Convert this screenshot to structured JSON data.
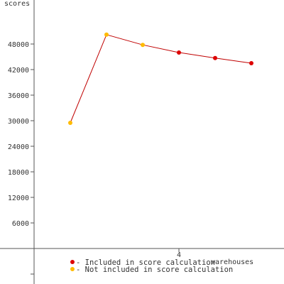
{
  "chart_data": {
    "type": "line",
    "ylabel": "scores",
    "xlabel": "warehouses",
    "x_ticks": [
      4
    ],
    "y_ticks": [
      6000,
      12000,
      18000,
      24000,
      30000,
      36000,
      42000,
      48000
    ],
    "ylim": [
      -6000,
      58000
    ],
    "xlim": [
      0,
      7
    ],
    "grid": false,
    "line_color": "#c00000",
    "series": [
      {
        "points": [
          {
            "x": 1,
            "y": 29500,
            "included": false
          },
          {
            "x": 2,
            "y": 50200,
            "included": false
          },
          {
            "x": 3,
            "y": 47800,
            "included": false
          },
          {
            "x": 4,
            "y": 46000,
            "included": true
          },
          {
            "x": 5,
            "y": 44700,
            "included": true
          },
          {
            "x": 6,
            "y": 43500,
            "included": true
          }
        ]
      }
    ],
    "legend": {
      "placement": "bottom",
      "entries": [
        {
          "label": "- Included in score calculation",
          "color": "#dd0000"
        },
        {
          "label": "- Not included in score calculation",
          "color": "#ffbb00"
        }
      ]
    }
  }
}
